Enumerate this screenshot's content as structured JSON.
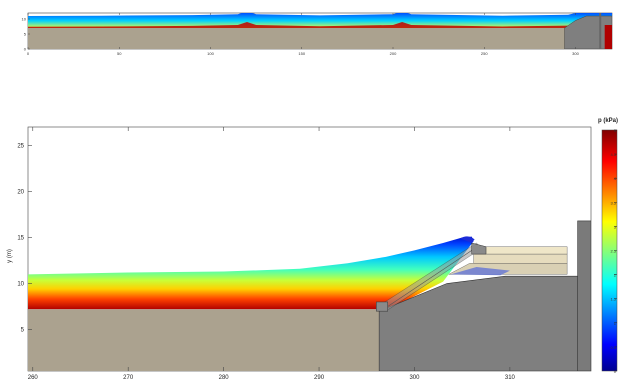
{
  "chart_data": [
    {
      "type": "area",
      "panel": "overview",
      "x_ticks": [
        "0",
        "50",
        "100",
        "150",
        "200",
        "250",
        "300"
      ],
      "y_ticks": [
        "10",
        "5",
        "0"
      ],
      "xlim": [
        0,
        320
      ],
      "ylim": [
        0,
        12
      ],
      "bed": {
        "x": [
          0,
          296,
          296,
          304,
          310,
          320
        ],
        "y": [
          7,
          7,
          7,
          9,
          10.8,
          10.8
        ]
      },
      "free_surface": {
        "x": [
          0,
          40,
          90,
          115,
          120,
          125,
          160,
          200,
          205,
          210,
          260,
          296,
          300,
          303,
          306,
          320
        ],
        "y": [
          11.0,
          11.1,
          11.3,
          11.6,
          12.6,
          11.6,
          11.2,
          11.6,
          12.6,
          11.6,
          11.1,
          11.4,
          12.0,
          12.3,
          12.0,
          12.0
        ]
      },
      "colormap": "jet",
      "colorbar_range": [
        0,
        5
      ]
    },
    {
      "type": "area",
      "panel": "detail",
      "ylabel": "y (m)",
      "x_ticks": [
        "260",
        "270",
        "280",
        "290",
        "300",
        "310"
      ],
      "y_ticks": [
        "5",
        "10",
        "15",
        "20",
        "25"
      ],
      "xlim": [
        259.5,
        318.5
      ],
      "ylim": [
        0.5,
        27
      ],
      "sand_bed": {
        "x": [
          259.5,
          296.3
        ],
        "y": [
          7.2,
          7.2
        ]
      },
      "wall_bed": {
        "x": [
          296.3,
          296.3,
          302.5,
          306,
          318.5
        ],
        "y": [
          7.2,
          7.0,
          9.8,
          10.8,
          10.8
        ]
      },
      "free_surface": {
        "x": [
          259.5,
          270,
          280,
          288,
          293,
          297,
          300,
          303,
          305,
          306
        ],
        "y": [
          11.0,
          11.2,
          11.3,
          11.6,
          12.2,
          12.9,
          13.6,
          14.4,
          15.0,
          15.1
        ]
      },
      "colormap": "jet",
      "colorbar": {
        "title": "p (kPa)",
        "range": [
          0,
          5
        ],
        "ticks": [
          "0",
          "1",
          "2",
          "3",
          "4",
          "5"
        ],
        "minor_ticks": [
          "0.5",
          "1.5",
          "2.5",
          "3.5",
          "4.5"
        ]
      }
    }
  ]
}
